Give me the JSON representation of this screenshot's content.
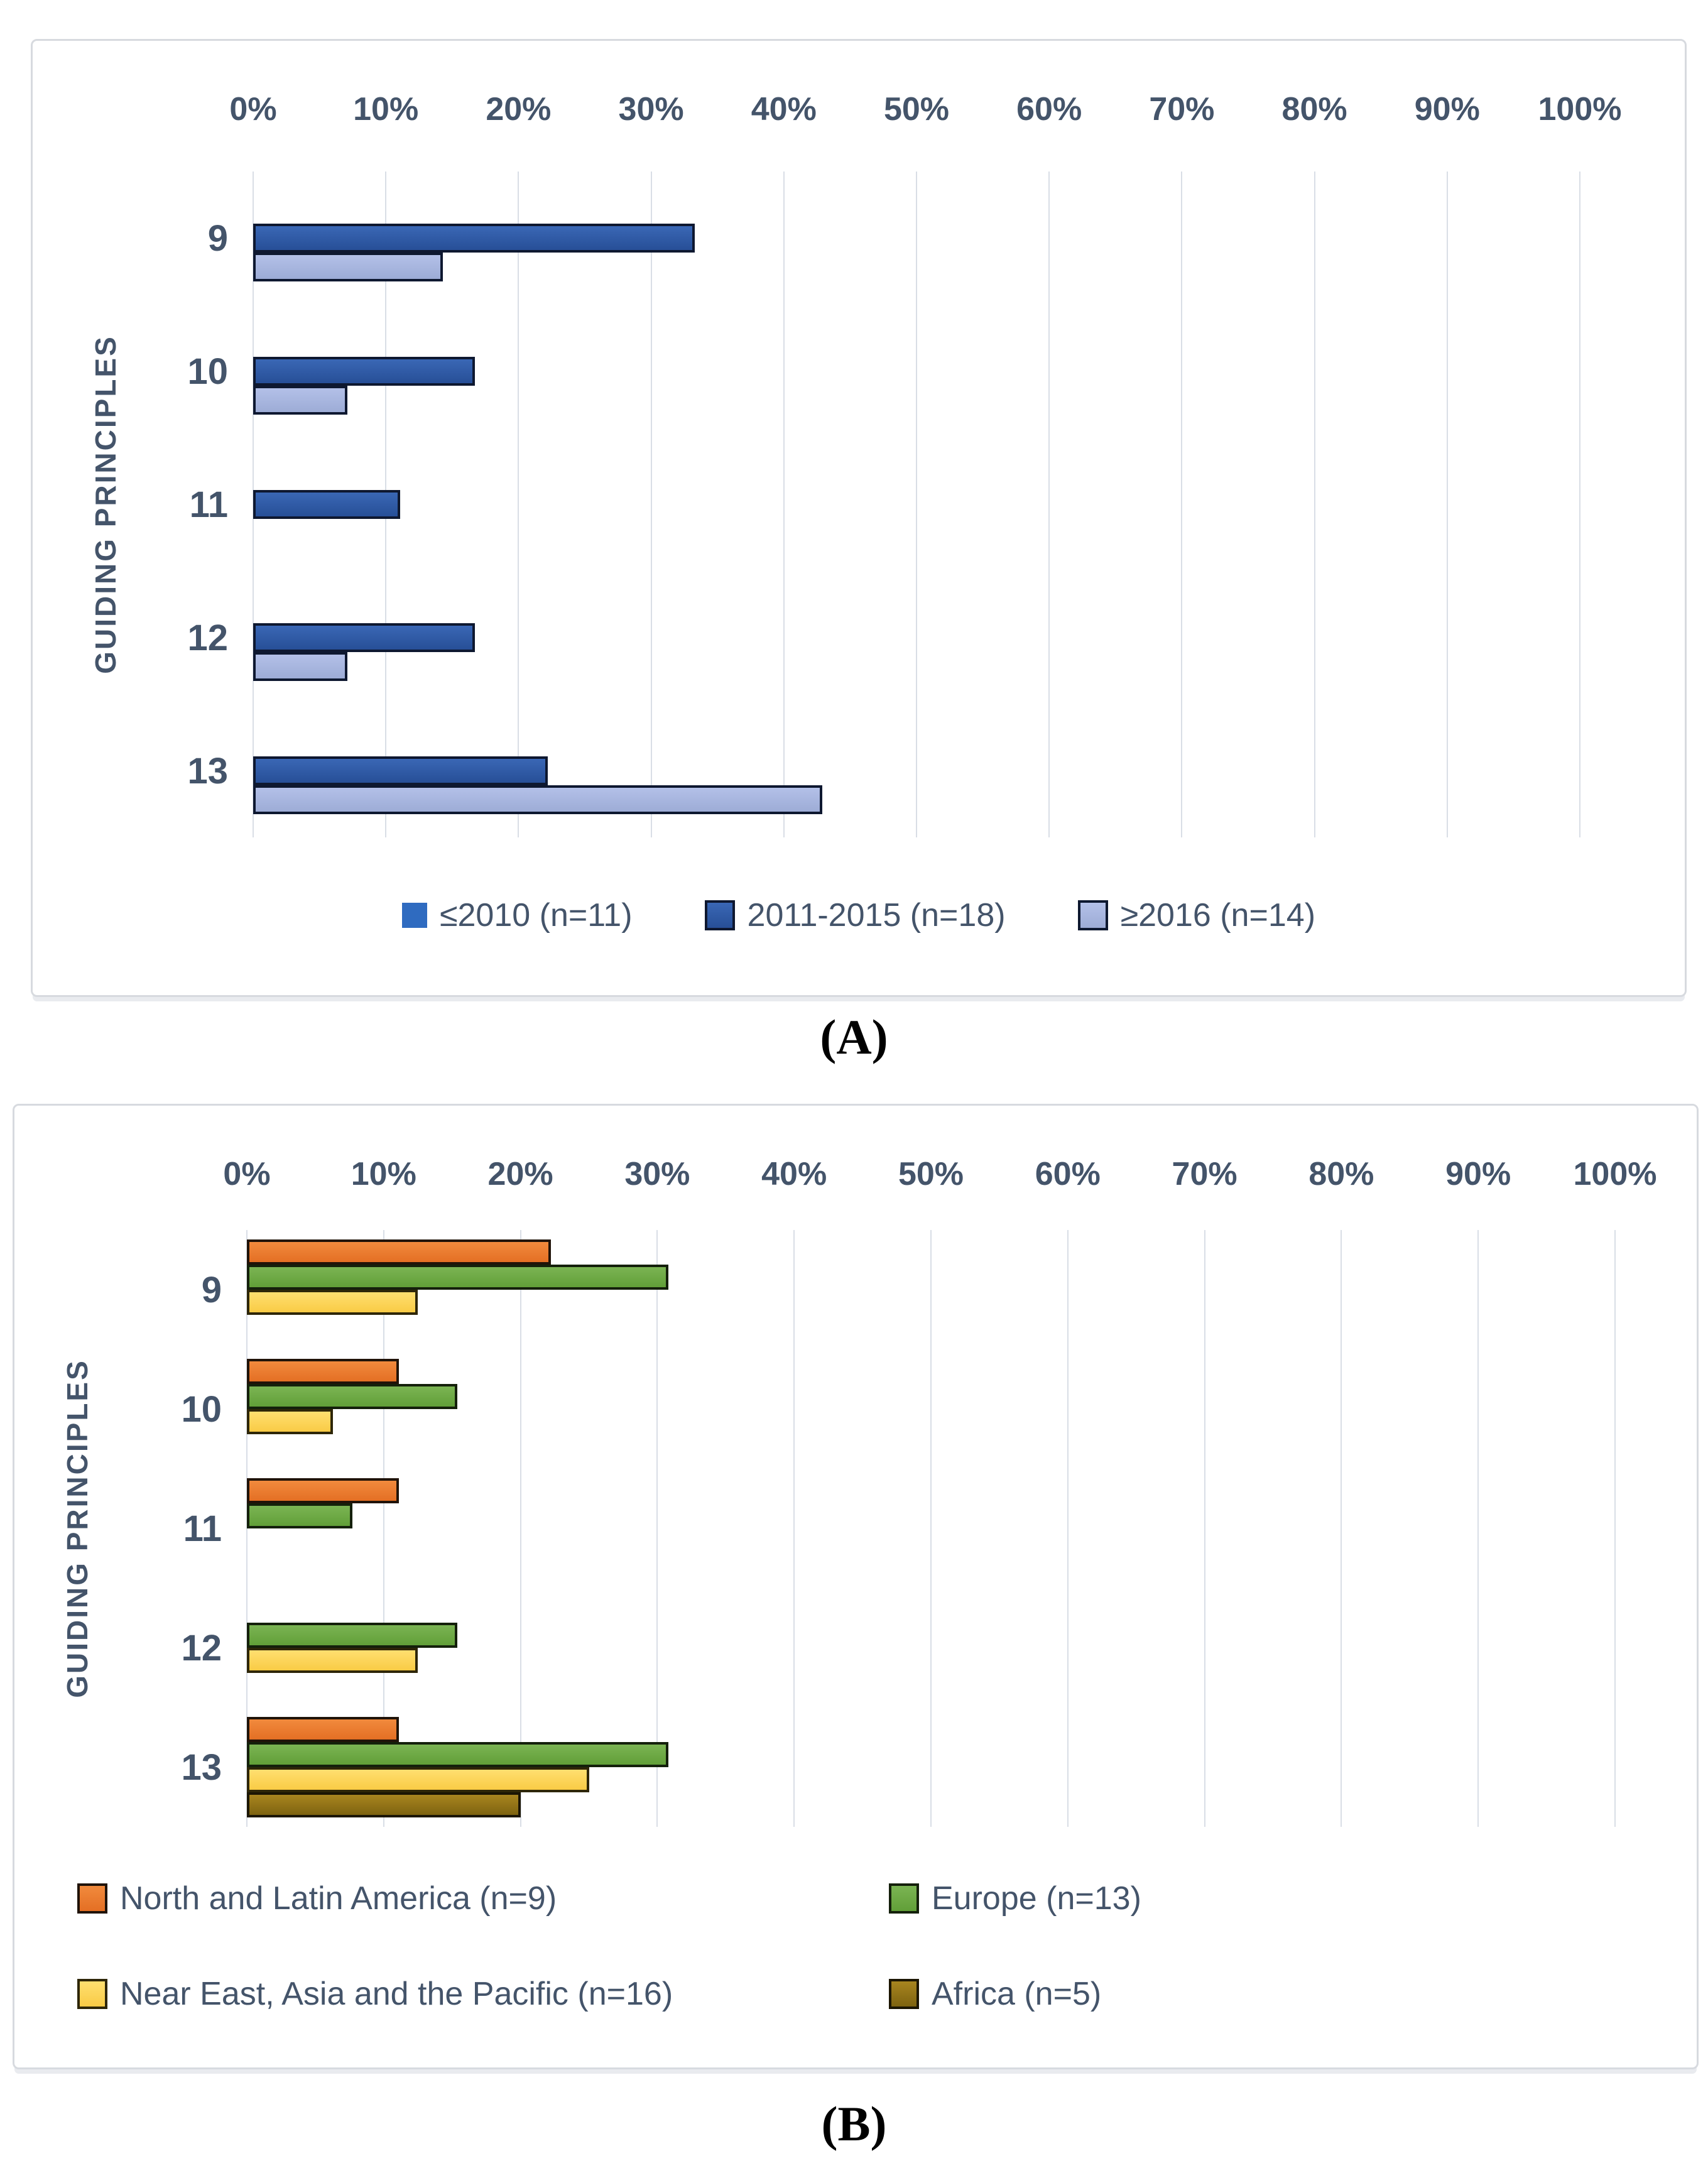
{
  "captions": {
    "a": "(A)",
    "b": "(B)"
  },
  "colors": {
    "text": "#44546A",
    "grid": "#D9DEE6",
    "chart_border": "#D7DADF",
    "background": "#FFFFFF"
  },
  "chart_data": [
    {
      "id": "A",
      "type": "bar",
      "orientation": "horizontal",
      "ylabel": "GUIDING PRINCIPLES",
      "xlabel": "",
      "xlim": [
        0,
        100
      ],
      "x_ticks": [
        "0%",
        "10%",
        "20%",
        "30%",
        "40%",
        "50%",
        "60%",
        "70%",
        "80%",
        "90%",
        "100%"
      ],
      "grid": true,
      "legend_position": "bottom-center",
      "categories": [
        "9",
        "10",
        "11",
        "12",
        "13"
      ],
      "series": [
        {
          "name": "≤2010 (n=11)",
          "values": [
            0,
            0,
            0,
            0,
            0
          ],
          "fill": "#2F6BC0",
          "fill2": "#2F6BC0",
          "border": "none"
        },
        {
          "name": "2011-2015 (n=18)",
          "values": [
            33.3,
            16.7,
            11.1,
            16.7,
            22.2
          ],
          "fill": "#3A67B5",
          "fill2": "#274F97",
          "border": "#0E1830"
        },
        {
          "name": "≥2016 (n=14)",
          "values": [
            14.3,
            7.1,
            0,
            7.1,
            42.9
          ],
          "fill": "#B3C0E8",
          "fill2": "#9DACD6",
          "border": "#0E1830"
        }
      ]
    },
    {
      "id": "B",
      "type": "bar",
      "orientation": "horizontal",
      "ylabel": "GUIDING PRINCIPLES",
      "xlabel": "",
      "xlim": [
        0,
        100
      ],
      "x_ticks": [
        "0%",
        "10%",
        "20%",
        "30%",
        "40%",
        "50%",
        "60%",
        "70%",
        "80%",
        "90%",
        "100%"
      ],
      "grid": true,
      "legend_position": "bottom-left-two-columns",
      "categories": [
        "9",
        "10",
        "11",
        "12",
        "13"
      ],
      "series": [
        {
          "name": "North and Latin America (n=9)",
          "values": [
            22.2,
            11.1,
            11.1,
            0,
            11.1
          ],
          "fill": "#F18A3D",
          "fill2": "#E46F24",
          "border": "#201309"
        },
        {
          "name": "Europe (n=13)",
          "values": [
            30.8,
            15.4,
            7.7,
            15.4,
            30.8
          ],
          "fill": "#7BB453",
          "fill2": "#619F38",
          "border": "#14200B"
        },
        {
          "name": "Near East, Asia and the Pacific (n=16)",
          "values": [
            12.5,
            6.3,
            0,
            12.5,
            25.0
          ],
          "fill": "#FFDF70",
          "fill2": "#F9CB45",
          "border": "#2E2608"
        },
        {
          "name": "Africa (n=5)",
          "values": [
            0,
            0,
            0,
            0,
            20.0
          ],
          "fill": "#A8851F",
          "fill2": "#7E6310",
          "border": "#1C1604"
        }
      ]
    }
  ]
}
